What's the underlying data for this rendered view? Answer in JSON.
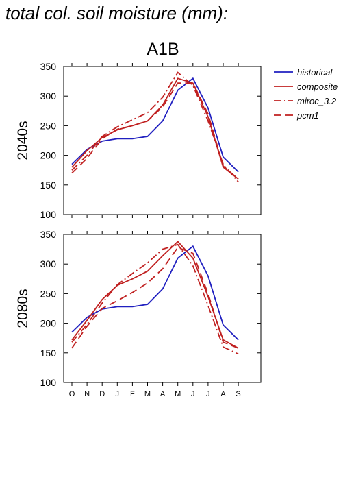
{
  "title": "total col. soil moisture (mm):",
  "scenario": "A1B",
  "colors": {
    "historical": "#2020c0",
    "model": "#c02020"
  },
  "legend": [
    {
      "name": "historical",
      "style": "solid",
      "color": "#2020c0"
    },
    {
      "name": "composite",
      "style": "solid",
      "color": "#c02020"
    },
    {
      "name": "miroc_3.2",
      "style": "dashdot",
      "color": "#c02020"
    },
    {
      "name": "pcm1",
      "style": "dashed",
      "color": "#c02020"
    }
  ],
  "chart_data": [
    {
      "type": "line",
      "ylabel": "2040s",
      "categories": [
        "O",
        "N",
        "D",
        "J",
        "F",
        "M",
        "A",
        "M",
        "J",
        "J",
        "A",
        "S"
      ],
      "yticks": [
        100,
        150,
        200,
        250,
        300,
        350
      ],
      "ylim": [
        100,
        350
      ],
      "grid": false,
      "legend_position": "right",
      "series": [
        {
          "name": "historical",
          "values": [
            185,
            210,
            224,
            228,
            228,
            232,
            258,
            310,
            330,
            280,
            197,
            172
          ]
        },
        {
          "name": "composite",
          "values": [
            180,
            208,
            230,
            243,
            250,
            258,
            285,
            330,
            322,
            265,
            180,
            160
          ]
        },
        {
          "name": "miroc_3.2",
          "values": [
            175,
            200,
            232,
            248,
            260,
            272,
            298,
            340,
            318,
            258,
            185,
            155
          ]
        },
        {
          "name": "pcm1",
          "values": [
            170,
            195,
            228,
            244,
            250,
            258,
            282,
            322,
            322,
            270,
            182,
            160
          ]
        }
      ]
    },
    {
      "type": "line",
      "ylabel": "2080s",
      "categories": [
        "O",
        "N",
        "D",
        "J",
        "F",
        "M",
        "A",
        "M",
        "J",
        "J",
        "A",
        "S"
      ],
      "yticks": [
        100,
        150,
        200,
        250,
        300,
        350
      ],
      "ylim": [
        100,
        350
      ],
      "grid": false,
      "series": [
        {
          "name": "historical",
          "values": [
            185,
            210,
            224,
            228,
            228,
            232,
            258,
            310,
            330,
            280,
            197,
            172
          ]
        },
        {
          "name": "composite",
          "values": [
            172,
            205,
            240,
            264,
            275,
            288,
            314,
            338,
            310,
            245,
            172,
            158
          ]
        },
        {
          "name": "miroc_3.2",
          "values": [
            168,
            198,
            234,
            265,
            284,
            302,
            325,
            333,
            297,
            230,
            160,
            148
          ]
        },
        {
          "name": "pcm1",
          "values": [
            158,
            195,
            225,
            238,
            252,
            268,
            292,
            328,
            318,
            250,
            168,
            158
          ]
        }
      ]
    }
  ]
}
